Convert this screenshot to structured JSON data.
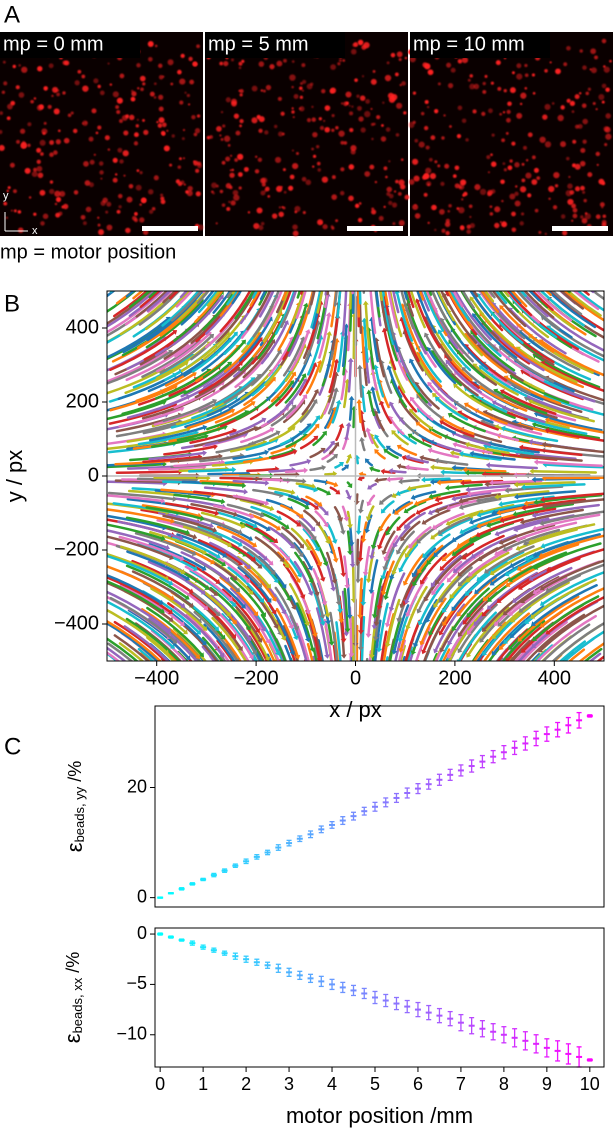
{
  "panel_a": {
    "label": "A",
    "images": [
      {
        "label": "mp = 0 mm"
      },
      {
        "label": "mp = 5 mm"
      },
      {
        "label": "mp = 10 mm"
      }
    ],
    "axis_labels": {
      "x": "x",
      "y": "y"
    },
    "caption": "mp = motor position"
  },
  "chart_data": [
    {
      "type": "flow",
      "panel": "B",
      "xlabel": "x / px",
      "ylabel": "y / px",
      "xlim": [
        -500,
        500
      ],
      "ylim": [
        -500,
        500
      ],
      "xticks": [
        {
          "value": -400,
          "label": "−400"
        },
        {
          "value": -200,
          "label": "−200"
        },
        0,
        200,
        400
      ],
      "yticks": [
        {
          "value": -400,
          "label": "−400"
        },
        {
          "value": -200,
          "label": "−200"
        },
        0,
        200,
        400
      ],
      "colors": [
        "#1f77b4",
        "#ff7f0e",
        "#2ca02c",
        "#d62728",
        "#9467bd",
        "#8c564b",
        "#e377c2",
        "#7f7f7f",
        "#bcbd22",
        "#17becf"
      ]
    },
    {
      "type": "errorbar",
      "panel": "C",
      "ylabel": {
        "symbol": "ε",
        "subscript": "beads, yy",
        "unit": " /%"
      },
      "xlim": [
        -0.12,
        10.33
      ],
      "ylim": [
        -1.7,
        34.8
      ],
      "yticks": [
        0,
        20
      ],
      "color_start": "#00ffff",
      "color_end": "#ff00ff",
      "x": [
        0,
        0.25,
        0.5,
        0.75,
        1,
        1.25,
        1.5,
        1.75,
        2,
        2.25,
        2.5,
        2.75,
        3,
        3.25,
        3.5,
        3.75,
        4,
        4.25,
        4.5,
        4.75,
        5,
        5.25,
        5.5,
        5.75,
        6,
        6.25,
        6.5,
        6.75,
        7,
        7.25,
        7.5,
        7.75,
        8,
        8.25,
        8.5,
        8.75,
        9,
        9.25,
        9.5,
        9.75,
        10
      ],
      "values": [
        0,
        0.8,
        1.6,
        2.5,
        3.3,
        4.1,
        4.9,
        5.8,
        6.6,
        7.4,
        8.2,
        9.1,
        9.9,
        10.7,
        11.5,
        12.4,
        13.2,
        14.0,
        14.8,
        15.7,
        16.5,
        17.3,
        18.1,
        19.0,
        19.8,
        20.6,
        21.4,
        22.3,
        23.1,
        23.9,
        24.7,
        25.6,
        26.4,
        27.2,
        28.0,
        28.9,
        29.7,
        30.5,
        31.3,
        32.2,
        33.0
      ],
      "errors": [
        0.1,
        0.1,
        0.2,
        0.2,
        0.2,
        0.3,
        0.3,
        0.3,
        0.4,
        0.4,
        0.4,
        0.5,
        0.5,
        0.5,
        0.6,
        0.6,
        0.6,
        0.7,
        0.7,
        0.7,
        0.8,
        0.8,
        0.8,
        0.9,
        0.9,
        0.9,
        1.0,
        1.0,
        1.0,
        1.1,
        1.1,
        1.1,
        1.2,
        1.2,
        1.2,
        1.3,
        1.3,
        1.3,
        1.4,
        1.4,
        0.2
      ]
    },
    {
      "type": "errorbar",
      "xlabel": "motor position /mm",
      "ylabel": {
        "symbol": "ε",
        "subscript": "beads, xx",
        "unit": " /%"
      },
      "xlim": [
        -0.12,
        10.33
      ],
      "ylim": [
        -13.2,
        0.6
      ],
      "xticks": [
        0,
        1,
        2,
        3,
        4,
        5,
        6,
        7,
        8,
        9,
        10
      ],
      "yticks": [
        {
          "value": -10,
          "label": "−10"
        },
        {
          "value": -5,
          "label": "−5"
        },
        0
      ],
      "color_start": "#00ffff",
      "color_end": "#ff00ff",
      "x": [
        0,
        0.25,
        0.5,
        0.75,
        1,
        1.25,
        1.5,
        1.75,
        2,
        2.25,
        2.5,
        2.75,
        3,
        3.25,
        3.5,
        3.75,
        4,
        4.25,
        4.5,
        4.75,
        5,
        5.25,
        5.5,
        5.75,
        6,
        6.25,
        6.5,
        6.75,
        7,
        7.25,
        7.5,
        7.75,
        8,
        8.25,
        8.5,
        8.75,
        9,
        9.25,
        9.5,
        9.75,
        10
      ],
      "values": [
        0,
        -0.3,
        -0.6,
        -0.9,
        -1.3,
        -1.6,
        -1.9,
        -2.2,
        -2.5,
        -2.8,
        -3.1,
        -3.4,
        -3.8,
        -4.1,
        -4.4,
        -4.7,
        -5.0,
        -5.3,
        -5.6,
        -5.9,
        -6.3,
        -6.6,
        -6.9,
        -7.2,
        -7.5,
        -7.8,
        -8.1,
        -8.4,
        -8.8,
        -9.1,
        -9.4,
        -9.7,
        -10.0,
        -10.3,
        -10.6,
        -10.9,
        -11.3,
        -11.6,
        -11.9,
        -12.2,
        -12.5
      ],
      "errors": [
        0.1,
        0.1,
        0.1,
        0.2,
        0.2,
        0.2,
        0.2,
        0.3,
        0.3,
        0.3,
        0.3,
        0.4,
        0.4,
        0.4,
        0.4,
        0.5,
        0.5,
        0.5,
        0.5,
        0.5,
        0.6,
        0.6,
        0.6,
        0.6,
        0.7,
        0.7,
        0.7,
        0.7,
        0.8,
        0.8,
        0.8,
        0.8,
        0.8,
        0.9,
        0.9,
        0.9,
        0.9,
        1.0,
        1.0,
        1.0,
        0.1
      ]
    }
  ]
}
